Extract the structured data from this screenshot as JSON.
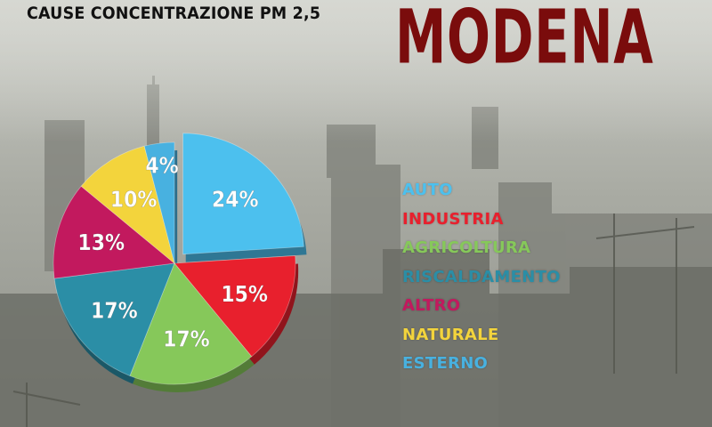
{
  "colors": {
    "auto": "#4cc0ee",
    "industria": "#e8202d",
    "agricoltura": "#86c85a",
    "riscaldamento": "#2b8ea6",
    "altro": "#c2195e",
    "naturale": "#f3d43c",
    "esterno": "#48b1e0",
    "title_city": "#7a0c0c"
  },
  "chart_data": {
    "type": "pie",
    "title": "CAUSE CONCENTRAZIONE PM 2,5",
    "subtitle": "MODENA",
    "legend_position": "right",
    "slices": [
      {
        "label": "AUTO",
        "value": 24,
        "value_label": "24%",
        "color": "#4cc0ee",
        "exploded": true
      },
      {
        "label": "INDUSTRIA",
        "value": 15,
        "value_label": "15%",
        "color": "#e8202d"
      },
      {
        "label": "AGRICOLTURA",
        "value": 17,
        "value_label": "17%",
        "color": "#86c85a"
      },
      {
        "label": "RISCALDAMENTO",
        "value": 17,
        "value_label": "17%",
        "color": "#2b8ea6"
      },
      {
        "label": "ALTRO",
        "value": 13,
        "value_label": "13%",
        "color": "#c2195e"
      },
      {
        "label": "NATURALE",
        "value": 10,
        "value_label": "10%",
        "color": "#f3d43c"
      },
      {
        "label": "ESTERNO",
        "value": 4,
        "value_label": "4%",
        "color": "#48b1e0"
      }
    ]
  }
}
